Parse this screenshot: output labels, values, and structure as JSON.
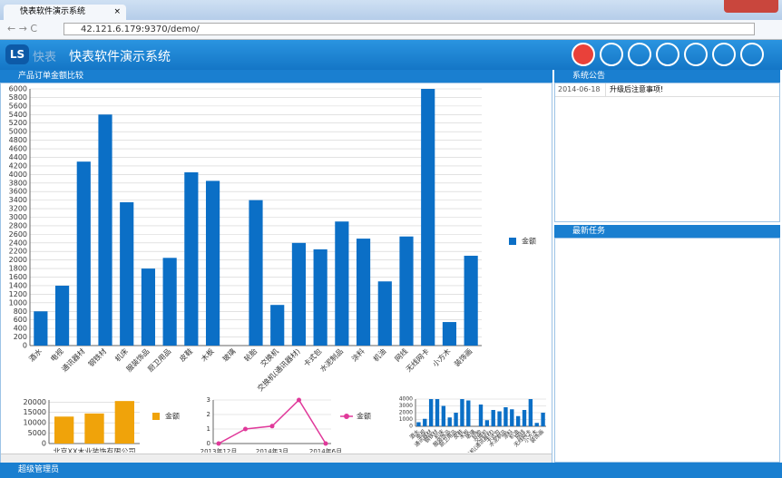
{
  "browser": {
    "tab_title": "快表软件演示系统",
    "url": "42.121.6.179:9370/demo/"
  },
  "header": {
    "logo": "快表",
    "title": "快表软件演示系统"
  },
  "panels": {
    "chart_panel": "产品订单金额比较",
    "notice": {
      "title": "系统公告",
      "rows": [
        [
          "2014-06-18",
          "升级后注意事项!"
        ]
      ]
    },
    "tasks": {
      "title": "最新任务"
    }
  },
  "footer": {
    "user": "超级管理员"
  },
  "chart_data": [
    {
      "type": "bar",
      "categories": [
        "酒水",
        "电视",
        "通讯器材",
        "钢铁材",
        "机床",
        "服装饰品",
        "厨卫用品",
        "皮鞋",
        "木板",
        "玻璃",
        "轮胎",
        "交换机",
        "交换机(通讯器材)",
        "卡式包",
        "水泥制品",
        "涂料",
        "机油",
        "网线",
        "无线网卡",
        "小方木",
        "装饰画"
      ],
      "series": [
        {
          "name": "金额",
          "color": "#0b6fc6",
          "values": [
            800,
            1400,
            4300,
            5400,
            3350,
            1800,
            2050,
            4050,
            3850,
            0,
            3400,
            950,
            2400,
            2250,
            2900,
            2500,
            1500,
            2550,
            6000,
            550,
            2100
          ]
        }
      ],
      "ylim": [
        0,
        6000
      ],
      "yticks": [
        0,
        200,
        400,
        600,
        800,
        1000,
        1200,
        1400,
        1600,
        1800,
        2000,
        2200,
        2400,
        2600,
        2800,
        3000,
        3200,
        3400,
        3600,
        3800,
        4000,
        4200,
        4400,
        4600,
        4800,
        5000,
        5200,
        5400,
        5600,
        5800,
        6000
      ],
      "grid": true,
      "legend": "right"
    },
    {
      "type": "bar",
      "categories": [
        null,
        "北京XX木业装饰有限公司",
        null
      ],
      "series": [
        {
          "name": "金额",
          "color": "#f0a30a",
          "values": [
            13000,
            14500,
            20500
          ]
        }
      ],
      "ylim": [
        0,
        21000
      ],
      "yticks": [
        0,
        5000,
        10000,
        15000,
        20000
      ],
      "grid": true,
      "legend": "right"
    },
    {
      "type": "line",
      "categories": [
        "2013年12月",
        null,
        "2014年3月",
        null,
        "2014年6月"
      ],
      "series": [
        {
          "name": "金额",
          "color": "#e0399a",
          "values": [
            0,
            1,
            1.2,
            3,
            0
          ]
        }
      ],
      "ylim": [
        0,
        3
      ],
      "yticks": [
        0,
        1,
        2,
        3
      ],
      "grid": true,
      "legend": "right"
    },
    {
      "type": "bar",
      "categories": [
        "酒水",
        "电视",
        "通讯器材",
        "钢铁材",
        "机床",
        "服装饰品",
        "厨卫用品",
        "皮鞋",
        "木板",
        "玻璃",
        "轮胎",
        "交换机",
        "交换机(通讯器材)",
        "卡式包",
        "水泥制品",
        "涂料",
        "机油",
        "网线",
        "无线网卡",
        "小方木",
        "装饰画"
      ],
      "series": [
        {
          "name": "金额",
          "color": "#0b6fc6",
          "values": [
            600,
            1100,
            4000,
            4000,
            3000,
            1300,
            2000,
            4000,
            3800,
            0,
            3200,
            900,
            2400,
            2200,
            2800,
            2500,
            1500,
            2400,
            4000,
            500,
            2000
          ]
        }
      ],
      "ylim": [
        0,
        4000
      ],
      "yticks": [
        0,
        1000,
        2000,
        3000,
        4000
      ],
      "grid": true,
      "legend": "none"
    }
  ]
}
